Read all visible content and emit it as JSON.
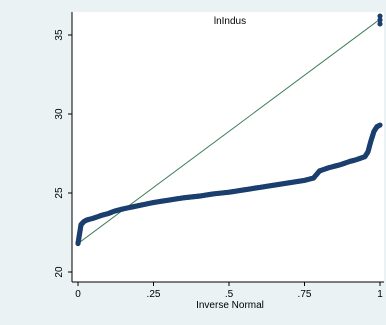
{
  "chart_data": {
    "type": "scatter",
    "title": "lnIndus",
    "xlabel": "Inverse Normal",
    "ylabel": "",
    "xlim": [
      0,
      1
    ],
    "ylim": [
      20,
      36.5
    ],
    "x_ticks": [
      0,
      0.25,
      0.5,
      0.75,
      1
    ],
    "x_tick_labels": [
      "0",
      ".25",
      ".5",
      ".75",
      "1"
    ],
    "y_ticks": [
      20,
      25,
      30,
      35
    ],
    "y_tick_labels": [
      "20",
      "25",
      "30",
      "35"
    ],
    "grid": false,
    "legend": "none",
    "reference_line": {
      "x": [
        0,
        1
      ],
      "y": [
        21.8,
        36.0
      ]
    },
    "series": [
      {
        "x": [
          0.0,
          0.005,
          0.01,
          0.02,
          0.03,
          0.05,
          0.08,
          0.1,
          0.12,
          0.15,
          0.2,
          0.25,
          0.3,
          0.35,
          0.4,
          0.45,
          0.5,
          0.55,
          0.6,
          0.65,
          0.7,
          0.75,
          0.78,
          0.8,
          0.83,
          0.85,
          0.87,
          0.9,
          0.92,
          0.95,
          0.96,
          0.97,
          0.98,
          0.99,
          1.0
        ],
        "y": [
          21.8,
          22.4,
          23.0,
          23.2,
          23.3,
          23.4,
          23.6,
          23.7,
          23.85,
          24.0,
          24.2,
          24.4,
          24.55,
          24.7,
          24.8,
          24.95,
          25.05,
          25.2,
          25.35,
          25.5,
          25.65,
          25.8,
          25.95,
          26.4,
          26.6,
          26.7,
          26.8,
          27.0,
          27.1,
          27.3,
          27.6,
          28.3,
          28.9,
          29.2,
          29.3
        ]
      }
    ],
    "outliers": {
      "x": [
        1.0,
        1.0,
        1.0
      ],
      "y": [
        35.7,
        35.95,
        36.2
      ]
    },
    "colors": {
      "markers": "#1b3f6e",
      "reference_line": "#3f7f5a",
      "plot_background": "#ffffff",
      "page_background": "#eaf2f3"
    }
  }
}
